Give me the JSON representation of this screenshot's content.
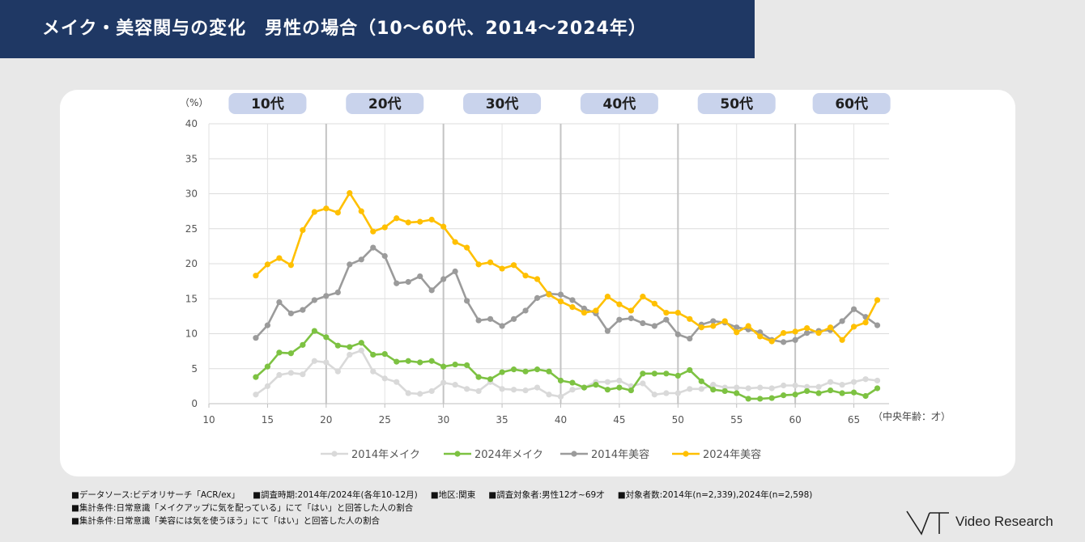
{
  "header": {
    "title": "メイク・美容関与の変化　男性の場合（10～60代、2014～2024年）"
  },
  "logo": {
    "text": "Video Research"
  },
  "footer": {
    "row1": [
      "■データソース:ビデオリサーチ「ACR/ex」",
      "■調査時期:2014年/2024年(各年10-12月)",
      "■地区:関東",
      "■調査対象者:男性12才~69才",
      "■対象者数:2014年(n=2,339),2024年(n=2,598)"
    ],
    "row2": "■集計条件:日常意識「メイクアップに気を配っている」にて「はい」と回答した人の割合",
    "row3": "■集計条件:日常意識「美容には気を使うほう」にて「はい」と回答した人の割合"
  },
  "chart_data": {
    "type": "line",
    "ylabel": "（%）",
    "xlabel": "（中央年齢：才）",
    "xlim": [
      10,
      68
    ],
    "ylim": [
      0,
      40
    ],
    "xticks": [
      10,
      15,
      20,
      25,
      30,
      35,
      40,
      45,
      50,
      55,
      60,
      65
    ],
    "yticks": [
      0,
      5,
      10,
      15,
      20,
      25,
      30,
      35,
      40
    ],
    "grid": true,
    "legend_position": "bottom",
    "age_groups": [
      {
        "label": "10代",
        "center": 15
      },
      {
        "label": "20代",
        "center": 25
      },
      {
        "label": "30代",
        "center": 35
      },
      {
        "label": "40代",
        "center": 45
      },
      {
        "label": "50代",
        "center": 55
      },
      {
        "label": "60代",
        "center": 64.8
      }
    ],
    "group_dividers": [
      20,
      30,
      40,
      50,
      60
    ],
    "x": [
      14,
      15,
      16,
      17,
      18,
      19,
      20,
      21,
      22,
      23,
      24,
      25,
      26,
      27,
      28,
      29,
      30,
      31,
      32,
      33,
      34,
      35,
      36,
      37,
      38,
      39,
      40,
      41,
      42,
      43,
      44,
      45,
      46,
      47,
      48,
      49,
      50,
      51,
      52,
      53,
      54,
      55,
      56,
      57,
      58,
      59,
      60,
      61,
      62,
      63,
      64,
      65,
      66,
      67
    ],
    "series": [
      {
        "name": "2014年メイク",
        "color": "#d9d9d9",
        "values": [
          1.3,
          2.5,
          4.1,
          4.4,
          4.2,
          6.1,
          5.9,
          4.6,
          7.0,
          7.6,
          4.6,
          3.6,
          3.1,
          1.5,
          1.4,
          1.8,
          3.0,
          2.7,
          2.1,
          1.8,
          3.1,
          2.1,
          2.0,
          1.9,
          2.3,
          1.3,
          1.0,
          2.0,
          2.3,
          3.1,
          3.1,
          3.3,
          2.5,
          2.9,
          1.3,
          1.5,
          1.5,
          2.1,
          2.1,
          2.7,
          2.3,
          2.3,
          2.2,
          2.3,
          2.2,
          2.6,
          2.6,
          2.4,
          2.4,
          3.1,
          2.7,
          3.1,
          3.5,
          3.3
        ]
      },
      {
        "name": "2024年メイク",
        "color": "#7dc242",
        "values": [
          3.8,
          5.3,
          7.3,
          7.2,
          8.4,
          10.4,
          9.5,
          8.3,
          8.1,
          8.7,
          7.0,
          7.1,
          6.0,
          6.1,
          5.9,
          6.1,
          5.3,
          5.6,
          5.5,
          3.8,
          3.5,
          4.5,
          4.9,
          4.6,
          4.9,
          4.6,
          3.3,
          3.0,
          2.3,
          2.7,
          2.0,
          2.3,
          1.9,
          4.3,
          4.3,
          4.3,
          4.0,
          4.8,
          3.2,
          2.0,
          1.8,
          1.5,
          0.7,
          0.7,
          0.8,
          1.2,
          1.3,
          1.8,
          1.5,
          1.9,
          1.5,
          1.6,
          1.1,
          2.2
        ]
      },
      {
        "name": "2014年美容",
        "color": "#9b9b9b",
        "values": [
          9.4,
          11.2,
          14.5,
          12.9,
          13.4,
          14.8,
          15.4,
          15.9,
          19.9,
          20.6,
          22.3,
          21.1,
          17.2,
          17.4,
          18.2,
          16.2,
          17.8,
          18.9,
          14.7,
          11.9,
          12.1,
          11.1,
          12.1,
          13.3,
          15.1,
          15.7,
          15.6,
          14.8,
          13.6,
          12.9,
          10.4,
          12.0,
          12.2,
          11.5,
          11.1,
          12.0,
          9.9,
          9.3,
          11.3,
          11.8,
          11.6,
          10.9,
          10.6,
          10.2,
          9.1,
          8.8,
          9.1,
          10.1,
          10.4,
          10.5,
          11.8,
          13.5,
          12.4,
          11.2
        ]
      },
      {
        "name": "2024年美容",
        "color": "#ffc000",
        "values": [
          18.3,
          19.9,
          20.8,
          19.8,
          24.8,
          27.4,
          27.9,
          27.3,
          30.1,
          27.5,
          24.6,
          25.2,
          26.5,
          25.9,
          26.0,
          26.3,
          25.3,
          23.1,
          22.3,
          19.9,
          20.2,
          19.3,
          19.8,
          18.3,
          17.8,
          15.6,
          14.6,
          13.8,
          13.0,
          13.3,
          15.3,
          14.2,
          13.3,
          15.3,
          14.3,
          13.0,
          13.0,
          12.1,
          10.9,
          11.1,
          11.8,
          10.2,
          11.1,
          9.6,
          8.9,
          10.1,
          10.3,
          10.8,
          10.1,
          10.9,
          9.1,
          11.0,
          11.6,
          14.8
        ]
      }
    ]
  }
}
